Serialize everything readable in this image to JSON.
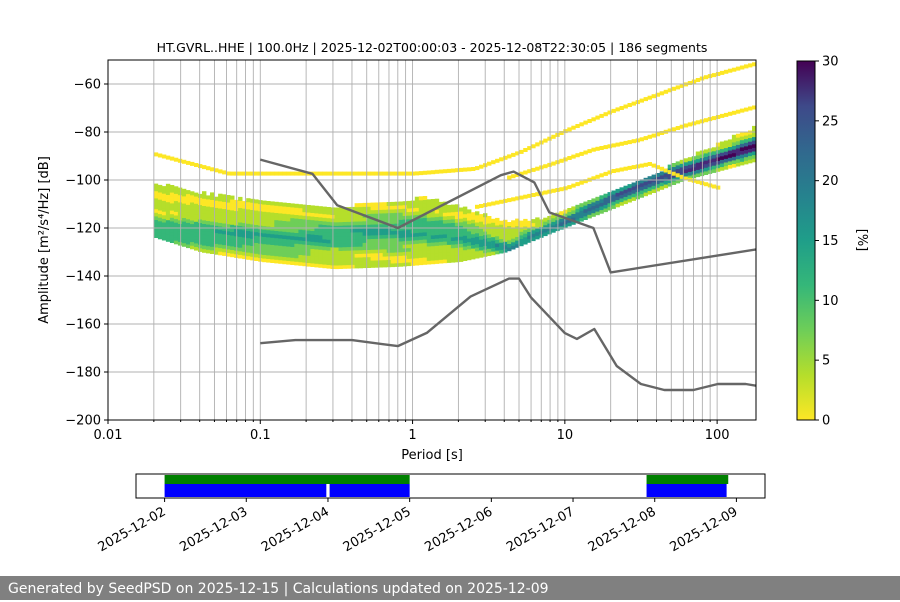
{
  "chart_data": {
    "type": "heatmap",
    "title": "HT.GVRL..HHE | 100.0Hz | 2025-12-02T00:00:03 - 2025-12-08T22:30:05 | 186 segments",
    "xlabel": "Period [s]",
    "ylabel": "Amplitude [m²/s⁴/Hz] [dB]",
    "xscale": "log",
    "xlim": [
      0.01,
      180
    ],
    "ylim": [
      -200,
      -50
    ],
    "xticks": [
      {
        "value": 0.01,
        "label": "0.01"
      },
      {
        "value": 0.1,
        "label": "0.1"
      },
      {
        "value": 1,
        "label": "1"
      },
      {
        "value": 10,
        "label": "10"
      },
      {
        "value": 100,
        "label": "100"
      }
    ],
    "yticks": [
      -200,
      -180,
      -160,
      -140,
      -120,
      -100,
      -80,
      -60
    ],
    "colorbar": {
      "label": "[%]",
      "min": 0,
      "max": 30,
      "ticks": [
        0,
        5,
        10,
        15,
        20,
        25,
        30
      ],
      "colormap": "viridis_r"
    },
    "grid": true,
    "psd_bands": [
      {
        "name": "mode",
        "points": [
          [
            0.02,
            -122
          ],
          [
            0.04,
            -123
          ],
          [
            0.08,
            -124
          ],
          [
            0.15,
            -125
          ],
          [
            0.3,
            -124
          ],
          [
            0.6,
            -122
          ],
          [
            1.2,
            -122
          ],
          [
            2,
            -124
          ],
          [
            3,
            -127
          ],
          [
            4.2,
            -129
          ],
          [
            6,
            -124
          ],
          [
            10,
            -118
          ],
          [
            20,
            -108
          ],
          [
            40,
            -100
          ],
          [
            80,
            -94
          ],
          [
            180,
            -86
          ]
        ]
      },
      {
        "name": "spread_upper",
        "points": [
          [
            0.02,
            -102
          ],
          [
            0.04,
            -106
          ],
          [
            0.1,
            -110
          ],
          [
            0.3,
            -112
          ],
          [
            0.6,
            -110
          ],
          [
            1.2,
            -108
          ],
          [
            2,
            -112
          ],
          [
            4,
            -118
          ],
          [
            8,
            -116
          ],
          [
            20,
            -106
          ],
          [
            60,
            -92
          ],
          [
            180,
            -78
          ]
        ]
      },
      {
        "name": "spread_lower",
        "points": [
          [
            0.02,
            -124
          ],
          [
            0.04,
            -130
          ],
          [
            0.1,
            -134
          ],
          [
            0.3,
            -137
          ],
          [
            0.8,
            -136
          ],
          [
            2,
            -134
          ],
          [
            4,
            -130
          ],
          [
            8,
            -122
          ],
          [
            20,
            -112
          ],
          [
            60,
            -100
          ],
          [
            180,
            -92
          ]
        ]
      },
      {
        "name": "upper_branch",
        "points": [
          [
            0.02,
            -90
          ],
          [
            0.06,
            -98
          ],
          [
            0.2,
            -98
          ],
          [
            1,
            -98
          ],
          [
            2.5,
            -96
          ],
          [
            5,
            -89
          ],
          [
            10,
            -80
          ],
          [
            20,
            -72
          ],
          [
            40,
            -65
          ],
          [
            80,
            -58
          ],
          [
            180,
            -52
          ]
        ]
      },
      {
        "name": "upper_branch_2",
        "points": [
          [
            4,
            -100
          ],
          [
            8,
            -94
          ],
          [
            15,
            -88
          ],
          [
            30,
            -84
          ],
          [
            60,
            -78
          ],
          [
            180,
            -70
          ]
        ]
      },
      {
        "name": "mid_branch",
        "points": [
          [
            2.5,
            -112
          ],
          [
            5,
            -108
          ],
          [
            10,
            -104
          ],
          [
            20,
            -97
          ],
          [
            35,
            -94
          ],
          [
            60,
            -100
          ],
          [
            100,
            -104
          ]
        ]
      }
    ],
    "noise_models": [
      {
        "name": "NHNM",
        "points": [
          [
            0.1,
            -91.5
          ],
          [
            0.22,
            -97.4
          ],
          [
            0.32,
            -110.5
          ],
          [
            0.8,
            -120
          ],
          [
            3.8,
            -98
          ],
          [
            4.6,
            -96.5
          ],
          [
            6.3,
            -101
          ],
          [
            7.9,
            -113.5
          ],
          [
            15.4,
            -120
          ],
          [
            20,
            -138.5
          ],
          [
            354,
            -126
          ]
        ]
      },
      {
        "name": "NLNM",
        "points": [
          [
            0.1,
            -168
          ],
          [
            0.17,
            -166.7
          ],
          [
            0.4,
            -166.7
          ],
          [
            0.8,
            -169.2
          ],
          [
            1.24,
            -163.7
          ],
          [
            2.4,
            -148.6
          ],
          [
            4.3,
            -141.1
          ],
          [
            5,
            -141.1
          ],
          [
            6,
            -149
          ],
          [
            10,
            -163.8
          ],
          [
            12,
            -166.2
          ],
          [
            15.6,
            -162.1
          ],
          [
            21.9,
            -177.5
          ],
          [
            31.6,
            -185
          ],
          [
            45,
            -187.5
          ],
          [
            70,
            -187.5
          ],
          [
            101,
            -185
          ],
          [
            154,
            -185
          ],
          [
            180,
            -185.7
          ]
        ]
      }
    ],
    "timeline": {
      "ticks": [
        "2025-12-02",
        "2025-12-03",
        "2025-12-04",
        "2025-12-05",
        "2025-12-06",
        "2025-12-07",
        "2025-12-08",
        "2025-12-09"
      ],
      "range_days": [
        -0.35,
        7.35
      ],
      "coverage_green": [
        [
          0,
          3.0
        ],
        [
          5.9,
          6.9
        ]
      ],
      "coverage_blue": [
        [
          0,
          1.98
        ],
        [
          2.02,
          3.0
        ],
        [
          5.9,
          6.88
        ]
      ],
      "colors": {
        "available": "#008000",
        "used": "#0000ff"
      }
    }
  },
  "footer_text": "Generated by SeedPSD on 2025-12-15 | Calculations updated on 2025-12-09"
}
